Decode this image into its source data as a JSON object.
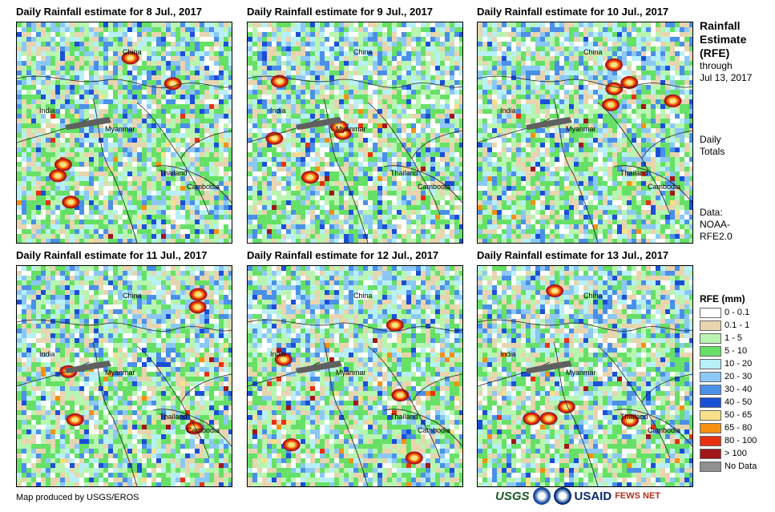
{
  "panels": [
    {
      "title": "Daily Rainfall estimate for 8 Jul., 2017",
      "labels": {
        "china": "China",
        "india": "India",
        "myanmar": "Myanmar",
        "thailand": "Thailand",
        "cambodia": "Cambodia"
      }
    },
    {
      "title": "Daily Rainfall estimate for 9 Jul., 2017",
      "labels": {
        "china": "China",
        "india": "India",
        "myanmar": "Myanmar",
        "thailand": "Thailand",
        "cambodia": "Cambodia"
      }
    },
    {
      "title": "Daily Rainfall estimate for 10 Jul., 2017",
      "labels": {
        "china": "China",
        "india": "India",
        "myanmar": "Myanmar",
        "thailand": "Thailand",
        "cambodia": "Cambodia"
      }
    },
    {
      "title": "Daily Rainfall estimate for 11 Jul., 2017",
      "labels": {
        "china": "China",
        "india": "India",
        "myanmar": "Myanmar",
        "thailand": "Thailand",
        "cambodia": "Cambodia"
      }
    },
    {
      "title": "Daily Rainfall estimate for 12 Jul., 2017",
      "labels": {
        "china": "China",
        "india": "India",
        "myanmar": "Myanmar",
        "thailand": "Thailand",
        "cambodia": "Cambodia"
      }
    },
    {
      "title": "Daily Rainfall estimate for 13 Jul., 2017",
      "labels": {
        "china": "China",
        "india": "India",
        "myanmar": "Myanmar",
        "thailand": "Thailand",
        "cambodia": "Cambodia"
      }
    }
  ],
  "side": {
    "title_line1": "Rainfall",
    "title_line2": "Estimate",
    "title_line3": "(RFE)",
    "through": "through",
    "date": "Jul 13, 2017",
    "daily": "Daily",
    "totals": "Totals",
    "data_label": "Data:",
    "data_src1": "NOAA-",
    "data_src2": "RFE2.0"
  },
  "legend": {
    "title": "RFE (mm)",
    "items": [
      {
        "label": "0 - 0.1",
        "color": "#ffffff"
      },
      {
        "label": "0.1 - 1",
        "color": "#e8d5b0"
      },
      {
        "label": "1 - 5",
        "color": "#b8f5b0"
      },
      {
        "label": "5 - 10",
        "color": "#66e066"
      },
      {
        "label": "10 - 20",
        "color": "#b8f0f8"
      },
      {
        "label": "20 - 30",
        "color": "#8cc8f5"
      },
      {
        "label": "30 - 40",
        "color": "#4a90e8"
      },
      {
        "label": "40 - 50",
        "color": "#1a4fd8"
      },
      {
        "label": "50 - 65",
        "color": "#f8e088"
      },
      {
        "label": "65 - 80",
        "color": "#f59010"
      },
      {
        "label": "80 - 100",
        "color": "#e83010"
      },
      {
        "label": "> 100",
        "color": "#a01818"
      },
      {
        "label": "No Data",
        "color": "#909090"
      }
    ]
  },
  "footer": "Map produced by USGS/EROS",
  "logos": {
    "usgs": "USGS",
    "usaid": "USAID",
    "fews": "FEWS NET"
  }
}
